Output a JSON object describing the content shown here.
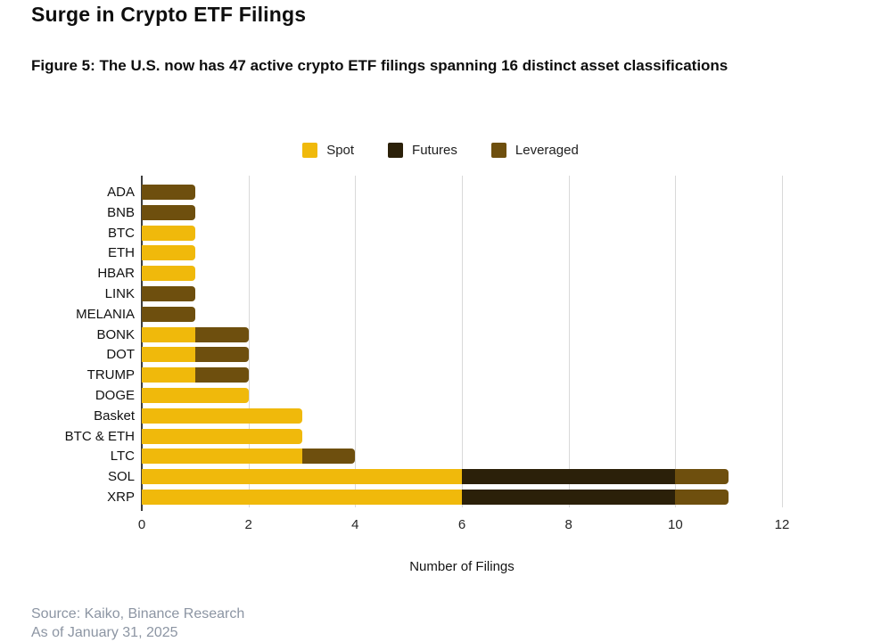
{
  "header": {
    "title": "Surge in Crypto ETF Filings",
    "subtitle": "Figure 5: The U.S. now has 47 active crypto ETF filings spanning 16 distinct asset classifications"
  },
  "chart_data": {
    "type": "bar",
    "orientation": "horizontal",
    "stacked": true,
    "title": "",
    "xlabel": "Number of Filings",
    "ylabel": "",
    "xlim": [
      0,
      12
    ],
    "xticks": [
      0,
      2,
      4,
      6,
      8,
      10,
      12
    ],
    "grid": true,
    "legend_position": "top",
    "categories": [
      "ADA",
      "BNB",
      "BTC",
      "ETH",
      "HBAR",
      "LINK",
      "MELANIA",
      "BONK",
      "DOT",
      "TRUMP",
      "DOGE",
      "Basket",
      "BTC & ETH",
      "LTC",
      "SOL",
      "XRP"
    ],
    "series": [
      {
        "name": "Spot",
        "color": "#F0B90B",
        "values": [
          0,
          0,
          1,
          1,
          1,
          0,
          0,
          1,
          1,
          1,
          2,
          3,
          3,
          3,
          6,
          6
        ]
      },
      {
        "name": "Futures",
        "color": "#2B2009",
        "values": [
          0,
          0,
          0,
          0,
          0,
          0,
          0,
          0,
          0,
          0,
          0,
          0,
          0,
          0,
          4,
          4
        ]
      },
      {
        "name": "Leveraged",
        "color": "#6E4F0E",
        "values": [
          1,
          1,
          0,
          0,
          0,
          1,
          1,
          1,
          1,
          1,
          0,
          0,
          0,
          1,
          1,
          1
        ]
      }
    ],
    "totals": [
      1,
      1,
      1,
      1,
      1,
      1,
      1,
      2,
      2,
      2,
      2,
      3,
      3,
      4,
      11,
      11
    ]
  },
  "footer": {
    "source": "Source: Kaiko, Binance Research",
    "as_of": "As of January 31, 2025"
  },
  "colors": {
    "spot": "#F0B90B",
    "futures": "#2B2009",
    "leveraged": "#6E4F0E",
    "gridline": "#D9D9D9",
    "axis": "#3D3D3D",
    "footer_text": "#8C95A3"
  }
}
